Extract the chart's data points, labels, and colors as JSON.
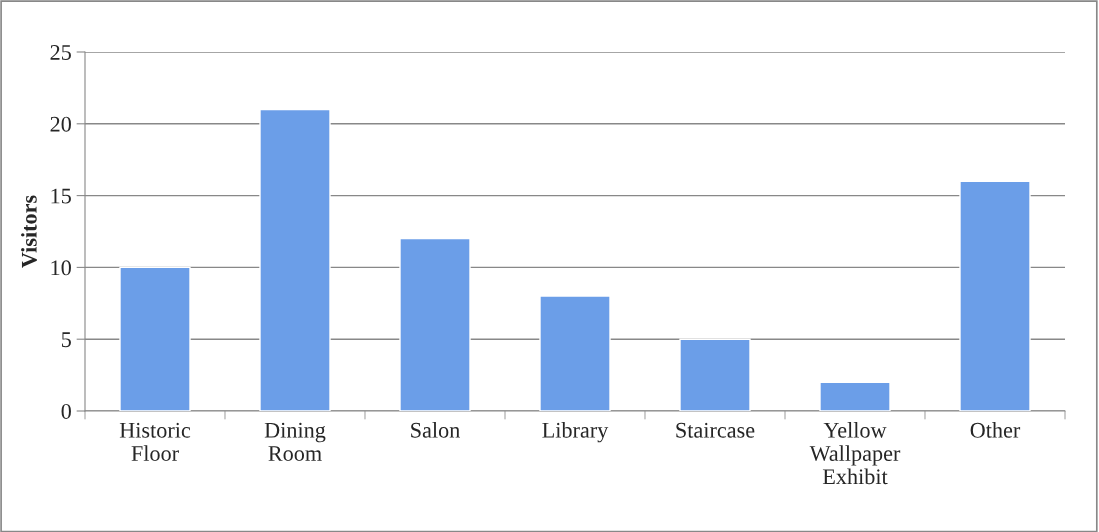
{
  "chart_data": {
    "type": "bar",
    "ylabel": "Visitors",
    "categories": [
      "Historic Floor",
      "Dining Room",
      "Salon",
      "Library",
      "Staircase",
      "Yellow Wallpaper Exhibit",
      "Other"
    ],
    "values": [
      10,
      21,
      12,
      8,
      5,
      2,
      16
    ],
    "color": "#6b9ee8",
    "ylim": [
      0,
      25
    ],
    "yticks": [
      0,
      5,
      10,
      15,
      20,
      25
    ],
    "grid": "y",
    "legend": false
  }
}
